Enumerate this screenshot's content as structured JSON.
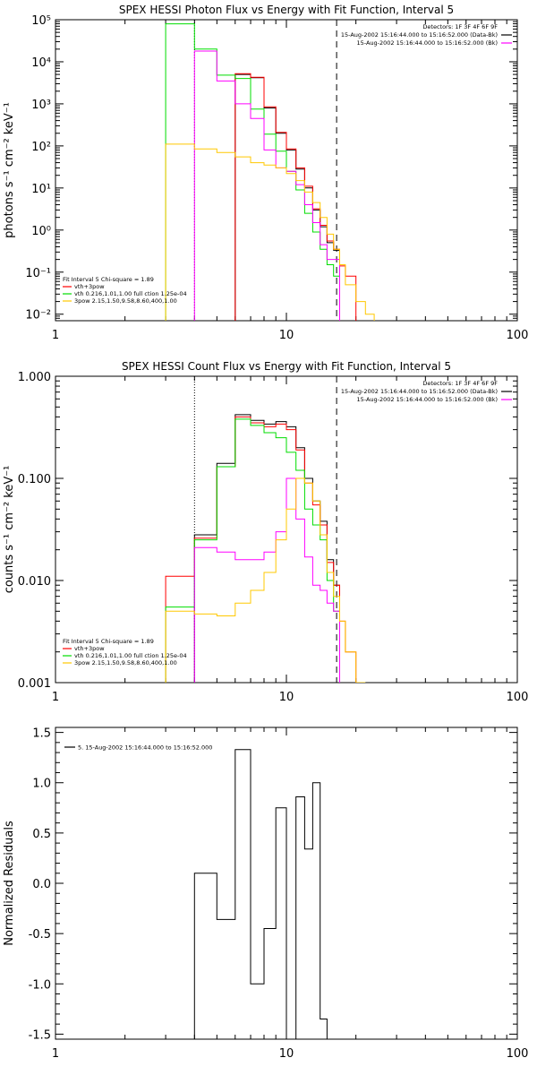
{
  "chart_data": [
    {
      "type": "line",
      "title": "SPEX HESSI Photon Flux vs Energy with Fit Function, Interval 5",
      "xlabel": "",
      "ylabel": "photons s⁻¹ cm⁻² keV⁻¹",
      "xscale": "log",
      "yscale": "log",
      "xlim": [
        1,
        100
      ],
      "ylim": [
        0.007,
        100000
      ],
      "x_ticks": [
        "1",
        "10",
        "100"
      ],
      "y_ticks": [
        "10⁻²",
        "10⁻¹",
        "10⁰",
        "10¹",
        "10²",
        "10³",
        "10⁴",
        "10⁵"
      ],
      "y_tick_values": [
        0.01,
        0.1,
        1,
        10,
        100,
        1000,
        10000,
        100000
      ],
      "vlines": [
        {
          "x": 4.0,
          "style": "dotted"
        },
        {
          "x": 16.5,
          "style": "dashed"
        }
      ],
      "legend_top": [
        "Detectors: 1F 3F 4F 6F 9F",
        "15-Aug-2002 15:16:44.000 to 15:16:52.000 (Data-Bk)",
        "15-Aug-2002 15:16:44.000 to 15:16:52.000 (Bk)"
      ],
      "legend_bottom": [
        "Fit Interval 5   Chi-square = 1.89",
        "vth+3pow",
        "vth 0.216,1.01,1.00  full ction 1.25e-04",
        "3pow 2.15,1.50,9.58,8.60,400,1.00"
      ],
      "edges": [
        3,
        4,
        5,
        6,
        7,
        8,
        9,
        10,
        11,
        12,
        13,
        14,
        15,
        16,
        17,
        18,
        20,
        22,
        24
      ],
      "series": [
        {
          "color": "#000000",
          "values": [
            null,
            null,
            null,
            5000,
            4200,
            800,
            200,
            80,
            28,
            10,
            3,
            1.2,
            0.5,
            0.33,
            null,
            null,
            null,
            null
          ]
        },
        {
          "color": "#ff0000",
          "values": [
            null,
            null,
            null,
            5200,
            4300,
            850,
            210,
            85,
            30,
            11,
            3.2,
            1.3,
            0.55,
            0.35,
            0.14,
            0.08,
            null,
            null
          ]
        },
        {
          "color": "#00dd00",
          "values": [
            80000,
            20000,
            4800,
            4000,
            750,
            190,
            75,
            25,
            9,
            2.5,
            0.9,
            0.35,
            0.15,
            0.08,
            null,
            null,
            null,
            null
          ]
        },
        {
          "color": "#ff00ff",
          "values": [
            null,
            18000,
            3500,
            1000,
            450,
            80,
            30,
            25,
            12,
            4,
            1.5,
            0.45,
            0.2,
            0.2,
            null,
            null,
            null,
            null
          ]
        },
        {
          "color": "#ffc800",
          "values": [
            110,
            85,
            70,
            55,
            40,
            35,
            30,
            22,
            15,
            8,
            4.5,
            2,
            0.8,
            0.35,
            0.15,
            0.05,
            0.02,
            0.01
          ]
        }
      ]
    },
    {
      "type": "line",
      "title": "SPEX HESSI Count Flux vs Energy with Fit Function, Interval 5",
      "xlabel": "",
      "ylabel": "counts s⁻¹ cm⁻² keV⁻¹",
      "xscale": "log",
      "yscale": "log",
      "xlim": [
        1,
        100
      ],
      "ylim": [
        0.001,
        1.0
      ],
      "x_ticks": [
        "1",
        "10",
        "100"
      ],
      "y_ticks": [
        "0.001",
        "0.010",
        "0.100",
        "1.000"
      ],
      "y_tick_values": [
        0.001,
        0.01,
        0.1,
        1.0
      ],
      "vlines": [
        {
          "x": 4.0,
          "style": "dotted"
        },
        {
          "x": 16.5,
          "style": "dashed"
        }
      ],
      "legend_top": [
        "Detectors: 1F 3F 4F 6F 9F",
        "15-Aug-2002 15:16:44.000 to 15:16:52.000 (Data-Bk)",
        "15-Aug-2002 15:16:44.000 to 15:16:52.000 (Bk)"
      ],
      "legend_bottom": [
        "Fit Interval 5   Chi-square = 1.89",
        "vth+3pow",
        "vth 0.216,1.01,1.00  full ction 1.25e-04",
        "3pow 2.15,1.50,9.58,8.60,400,1.00"
      ],
      "edges": [
        3,
        4,
        5,
        6,
        7,
        8,
        9,
        10,
        11,
        12,
        13,
        14,
        15,
        16,
        17,
        18,
        20,
        22,
        24
      ],
      "series": [
        {
          "color": "#000000",
          "values": [
            null,
            0.028,
            0.14,
            0.42,
            0.37,
            0.34,
            0.36,
            0.32,
            0.2,
            0.1,
            0.06,
            0.038,
            0.016,
            0.009,
            null,
            null,
            null,
            null
          ]
        },
        {
          "color": "#ff0000",
          "values": [
            0.011,
            0.026,
            0.13,
            0.4,
            0.35,
            0.32,
            0.34,
            0.3,
            0.19,
            0.09,
            0.055,
            0.035,
            0.015,
            0.009,
            0.004,
            0.002,
            null,
            null
          ]
        },
        {
          "color": "#00dd00",
          "values": [
            0.0055,
            0.025,
            0.13,
            0.38,
            0.33,
            0.28,
            0.25,
            0.18,
            0.12,
            0.05,
            0.035,
            0.025,
            0.01,
            0.005,
            null,
            null,
            null,
            null
          ]
        },
        {
          "color": "#ff00ff",
          "values": [
            null,
            0.021,
            0.019,
            0.016,
            0.016,
            0.019,
            0.03,
            0.1,
            0.04,
            0.017,
            0.009,
            0.008,
            0.006,
            0.005,
            null,
            null,
            null,
            null
          ]
        },
        {
          "color": "#ffc800",
          "values": [
            0.005,
            0.0047,
            0.0045,
            0.006,
            0.008,
            0.012,
            0.025,
            0.05,
            0.1,
            0.09,
            0.06,
            0.028,
            0.012,
            0.007,
            0.004,
            0.002,
            0.001,
            null
          ]
        }
      ]
    },
    {
      "type": "line",
      "title": "",
      "xlabel": "",
      "ylabel": "Normalized Residuals",
      "xscale": "log",
      "yscale": "linear",
      "xlim": [
        1,
        100
      ],
      "ylim": [
        -1.55,
        1.55
      ],
      "x_ticks": [
        "1",
        "10",
        "100"
      ],
      "y_ticks": [
        "-1.5",
        "-1.0",
        "-0.5",
        "0.0",
        "0.5",
        "1.0",
        "1.5"
      ],
      "y_tick_values": [
        -1.5,
        -1.0,
        -0.5,
        0.0,
        0.5,
        1.0,
        1.5
      ],
      "vlines": [],
      "legend_top": [
        "5. 15-Aug-2002 15:16:44.000 to 15:16:52.000"
      ],
      "legend_bottom": [],
      "edges": [
        4,
        5,
        6,
        7,
        8,
        9,
        10,
        11,
        12,
        13,
        14,
        15,
        16
      ],
      "series": [
        {
          "color": "#000000",
          "values": [
            0.1,
            -0.36,
            1.33,
            -1.0,
            -0.45,
            0.75,
            -1.55,
            0.86,
            0.34,
            1.0,
            -1.35,
            null
          ]
        }
      ]
    }
  ]
}
